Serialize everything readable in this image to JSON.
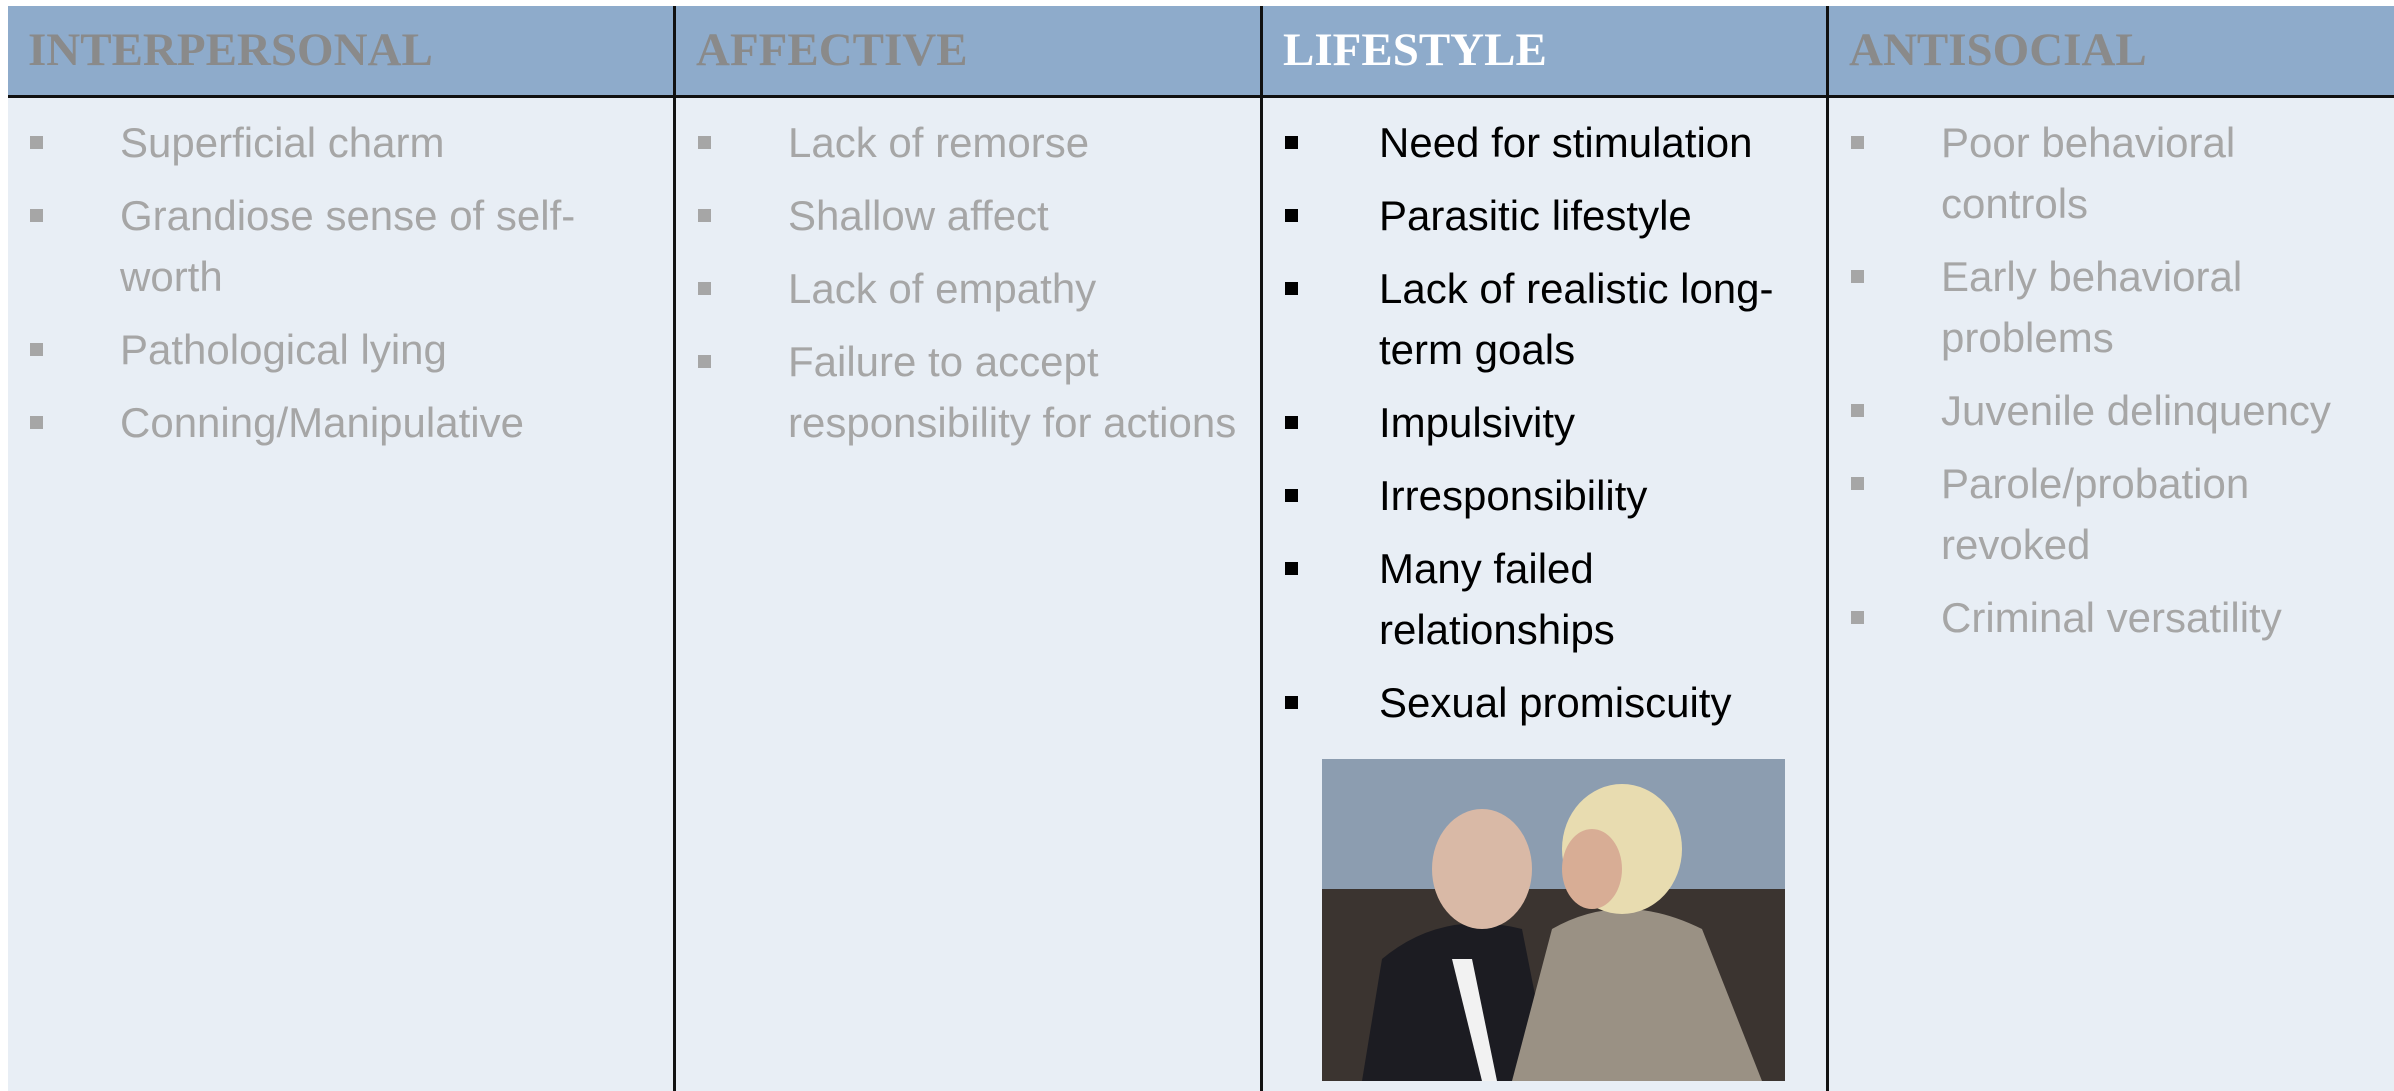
{
  "table": {
    "columns": [
      {
        "header": "INTERPERSONAL",
        "items": [
          "Superficial charm",
          "Grandiose sense of self-worth",
          "Pathological lying",
          "Conning/Manipulative"
        ]
      },
      {
        "header": "AFFECTIVE",
        "items": [
          "Lack of remorse",
          "Shallow affect",
          "Lack of empathy",
          "Failure to accept responsibility for actions"
        ]
      },
      {
        "header": "LIFESTYLE",
        "items": [
          "Need for stimulation",
          "Parasitic lifestyle",
          "Lack of realistic long-term goals",
          "Impulsivity",
          "Irresponsibility",
          "Many failed relationships",
          "Sexual promiscuity"
        ]
      },
      {
        "header": "ANTISOCIAL",
        "items": [
          "Poor behavioral controls",
          "Early behavioral problems",
          "Juvenile delinquency",
          "Parole/probation revoked",
          "Criminal versatility"
        ]
      }
    ]
  }
}
